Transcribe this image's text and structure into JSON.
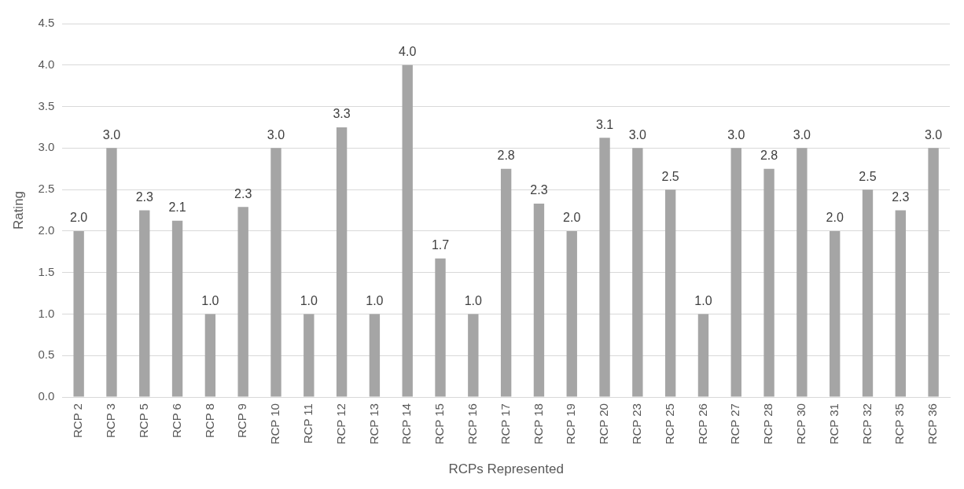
{
  "chart_data": {
    "type": "bar",
    "xlabel": "RCPs Represented",
    "ylabel": "Rating",
    "categories": [
      "RCP 2",
      "RCP 3",
      "RCP 5",
      "RCP 6",
      "RCP 8",
      "RCP 9",
      "RCP 10",
      "RCP 11",
      "RCP 12",
      "RCP 13",
      "RCP 14",
      "RCP 15",
      "RCP 16",
      "RCP 17",
      "RCP 18",
      "RCP 19",
      "RCP 20",
      "RCP 23",
      "RCP 25",
      "RCP 26",
      "RCP 27",
      "RCP 28",
      "RCP 30",
      "RCP 31",
      "RCP 32",
      "RCP 35",
      "RCP 36"
    ],
    "values": [
      2.0,
      3.0,
      2.25,
      2.125,
      1.0,
      2.29,
      3.0,
      1.0,
      3.25,
      1.0,
      4.0,
      1.67,
      1.0,
      2.75,
      2.33,
      2.0,
      3.125,
      3.0,
      2.5,
      1.0,
      3.0,
      2.75,
      3.0,
      2.0,
      2.5,
      2.25,
      3.0
    ],
    "value_labels": [
      "2.0",
      "3.0",
      "2.3",
      "2.1",
      "1.0",
      "2.3",
      "3.0",
      "1.0",
      "3.3",
      "1.0",
      "4.0",
      "1.7",
      "1.0",
      "2.8",
      "2.3",
      "2.0",
      "3.1",
      "3.0",
      "2.5",
      "1.0",
      "3.0",
      "2.8",
      "3.0",
      "2.0",
      "2.5",
      "2.3",
      "3.0"
    ],
    "color": "#a5a5a5",
    "ylim": [
      0,
      4.5
    ],
    "yticks": [
      {
        "value": 0,
        "label": "0.0"
      },
      {
        "value": 0.5,
        "label": "0.5"
      },
      {
        "value": 1,
        "label": "1.0"
      },
      {
        "value": 1.5,
        "label": "1.5"
      },
      {
        "value": 2,
        "label": "2.0"
      },
      {
        "value": 2.5,
        "label": "2.5"
      },
      {
        "value": 3,
        "label": "3.0"
      },
      {
        "value": 3.5,
        "label": "3.5"
      },
      {
        "value": 4,
        "label": "4.0"
      },
      {
        "value": 4.5,
        "label": "4.5"
      }
    ],
    "grid": "y"
  }
}
